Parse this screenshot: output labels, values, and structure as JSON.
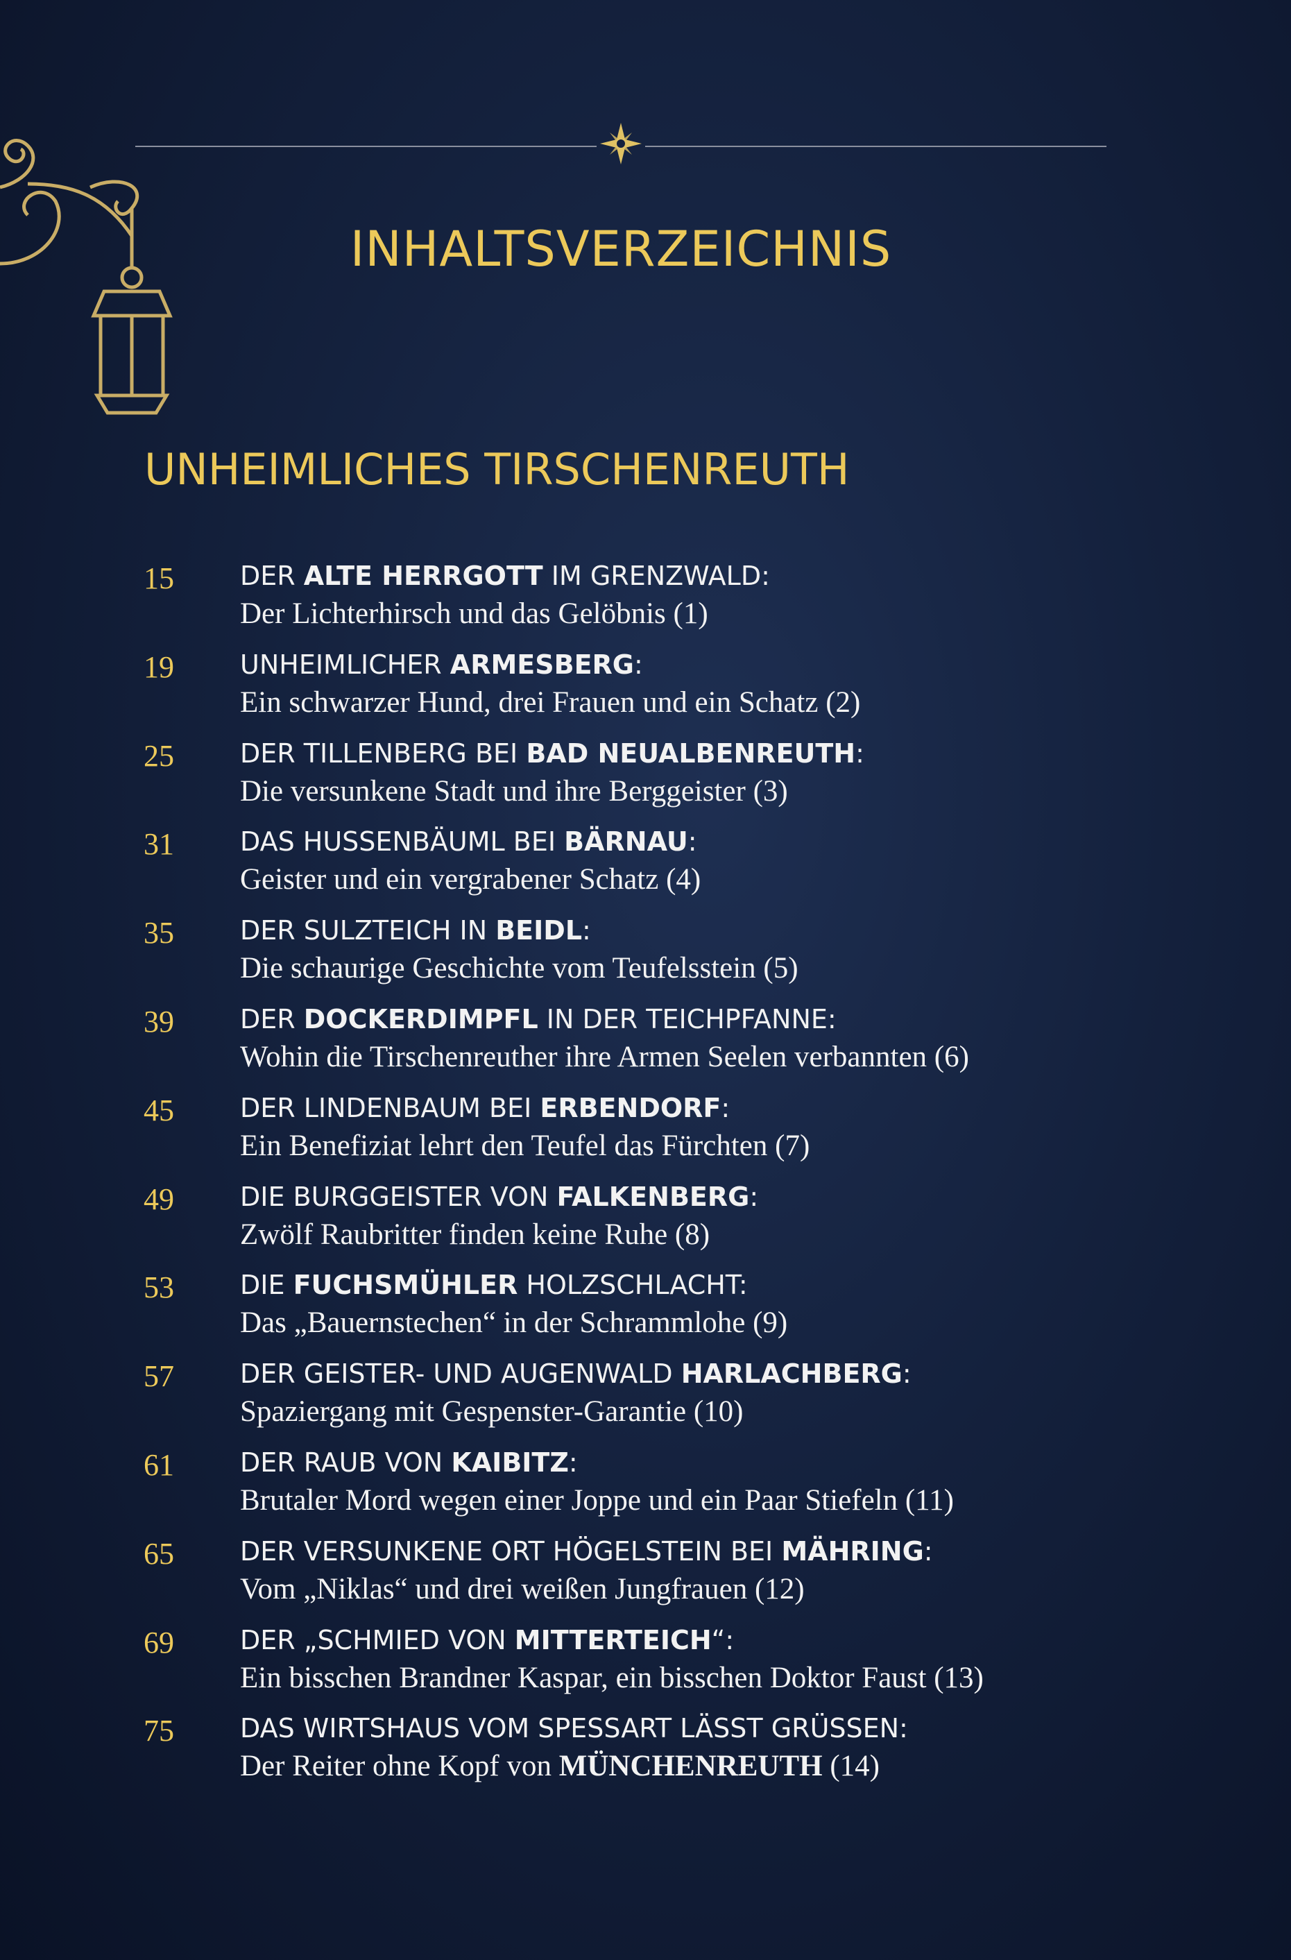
{
  "header": {
    "title": "INHALTSVERZEICHNIS"
  },
  "section": {
    "title": "UNHEIMLICHES TIRSCHENREUTH"
  },
  "entries": [
    {
      "number": "15",
      "heading": [
        {
          "text": "DER "
        },
        {
          "text": "ALTE HERRGOTT",
          "bold": true
        },
        {
          "text": " IM GRENZWALD:"
        }
      ],
      "subtitle": [
        {
          "text": "Der Lichterhirsch und das Gelöbnis (1)"
        }
      ]
    },
    {
      "number": "19",
      "heading": [
        {
          "text": "UNHEIMLICHER "
        },
        {
          "text": "ARMESBERG",
          "bold": true
        },
        {
          "text": ":"
        }
      ],
      "subtitle": [
        {
          "text": "Ein schwarzer Hund, drei Frauen und ein Schatz (2)"
        }
      ]
    },
    {
      "number": "25",
      "heading": [
        {
          "text": "DER TILLENBERG BEI "
        },
        {
          "text": "BAD NEUALBENREUTH",
          "bold": true
        },
        {
          "text": ":"
        }
      ],
      "subtitle": [
        {
          "text": "Die versunkene Stadt und ihre Berggeister (3)"
        }
      ]
    },
    {
      "number": "31",
      "heading": [
        {
          "text": "DAS HUSSENBÄUML BEI "
        },
        {
          "text": "BÄRNAU",
          "bold": true
        },
        {
          "text": ":"
        }
      ],
      "subtitle": [
        {
          "text": "Geister und ein vergrabener Schatz (4)"
        }
      ]
    },
    {
      "number": "35",
      "heading": [
        {
          "text": "DER SULZTEICH IN "
        },
        {
          "text": "BEIDL",
          "bold": true
        },
        {
          "text": ":"
        }
      ],
      "subtitle": [
        {
          "text": "Die schaurige Geschichte vom Teufelsstein (5)"
        }
      ]
    },
    {
      "number": "39",
      "heading": [
        {
          "text": "DER "
        },
        {
          "text": "DOCKERDIMPFL",
          "bold": true
        },
        {
          "text": " IN DER TEICHPFANNE:"
        }
      ],
      "subtitle": [
        {
          "text": "Wohin die Tirschenreuther ihre Armen Seelen verbannten (6)"
        }
      ]
    },
    {
      "number": "45",
      "heading": [
        {
          "text": "DER LINDENBAUM BEI "
        },
        {
          "text": "ERBENDORF",
          "bold": true
        },
        {
          "text": ":"
        }
      ],
      "subtitle": [
        {
          "text": "Ein Benefiziat lehrt den Teufel das Fürchten (7)"
        }
      ]
    },
    {
      "number": "49",
      "heading": [
        {
          "text": "DIE BURGGEISTER VON "
        },
        {
          "text": "FALKENBERG",
          "bold": true
        },
        {
          "text": ":"
        }
      ],
      "subtitle": [
        {
          "text": "Zwölf Raubritter finden keine Ruhe (8)"
        }
      ]
    },
    {
      "number": "53",
      "heading": [
        {
          "text": "DIE "
        },
        {
          "text": "FUCHSMÜHLER",
          "bold": true
        },
        {
          "text": " HOLZSCHLACHT:"
        }
      ],
      "subtitle": [
        {
          "text": "Das „Bauernstechen“ in der Schrammlohe (9)"
        }
      ]
    },
    {
      "number": "57",
      "heading": [
        {
          "text": "DER GEISTER- UND AUGENWALD "
        },
        {
          "text": "HARLACHBERG",
          "bold": true
        },
        {
          "text": ":"
        }
      ],
      "subtitle": [
        {
          "text": "Spaziergang mit Gespenster-Garantie (10)"
        }
      ]
    },
    {
      "number": "61",
      "heading": [
        {
          "text": "DER RAUB VON "
        },
        {
          "text": "KAIBITZ",
          "bold": true
        },
        {
          "text": ":"
        }
      ],
      "subtitle": [
        {
          "text": "Brutaler Mord wegen einer Joppe und ein Paar Stiefeln (11)"
        }
      ]
    },
    {
      "number": "65",
      "heading": [
        {
          "text": "DER VERSUNKENE ORT HÖGELSTEIN BEI "
        },
        {
          "text": "MÄHRING",
          "bold": true
        },
        {
          "text": ":"
        }
      ],
      "subtitle": [
        {
          "text": "Vom „Niklas“ und drei weißen Jungfrauen (12)"
        }
      ]
    },
    {
      "number": "69",
      "heading": [
        {
          "text": "DER „SCHMIED VON "
        },
        {
          "text": "MITTERTEICH",
          "bold": true
        },
        {
          "text": "“:"
        }
      ],
      "subtitle": [
        {
          "text": "Ein bisschen Brandner Kaspar, ein bisschen Doktor Faust (13)"
        }
      ]
    },
    {
      "number": "75",
      "heading": [
        {
          "text": "DAS WIRTSHAUS VOM SPESSART LÄSST GRÜSSEN:"
        }
      ],
      "subtitle": [
        {
          "text": "Der Reiter ohne Kopf von "
        },
        {
          "text": "MÜNCHENREUTH",
          "bold": true
        },
        {
          "text": " (14)"
        }
      ]
    }
  ]
}
